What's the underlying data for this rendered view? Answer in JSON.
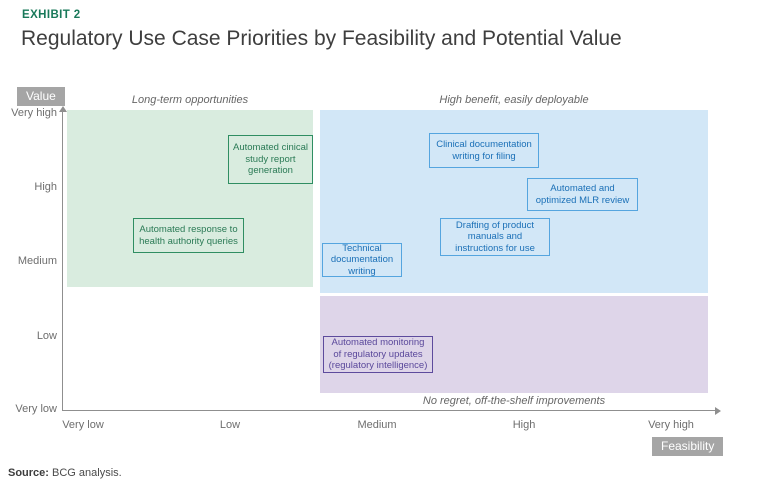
{
  "header": {
    "eyebrow": "EXHIBIT 2",
    "title": "Regulatory Use Case Priorities by Feasibility and Potential Value"
  },
  "axes": {
    "y_label": "Value",
    "x_label": "Feasibility",
    "y_ticks": [
      "Very high",
      "High",
      "Medium",
      "Low",
      "Very low"
    ],
    "x_ticks": [
      "Very low",
      "Low",
      "Medium",
      "High",
      "Very high"
    ]
  },
  "regions": {
    "green": {
      "label": "Long-term opportunities",
      "fill": "#d9ecdf"
    },
    "blue": {
      "label": "High benefit, easily deployable",
      "fill": "#d2e7f7"
    },
    "purple": {
      "label": "No regret, off-the-shelf improvements",
      "fill": "#ded5e9"
    }
  },
  "use_cases": [
    {
      "group": "green",
      "lines": [
        "Automated cinical",
        "study report",
        "generation"
      ]
    },
    {
      "group": "green",
      "lines": [
        "Automated response to",
        "health authority queries"
      ]
    },
    {
      "group": "blue",
      "lines": [
        "Clinical documentation",
        "writing for filing"
      ]
    },
    {
      "group": "blue",
      "lines": [
        "Automated and",
        "optimized MLR review"
      ]
    },
    {
      "group": "blue",
      "lines": [
        "Drafting of product",
        "manuals and",
        "instructions for use"
      ]
    },
    {
      "group": "blue",
      "lines": [
        "Technical",
        "documentation",
        "writing"
      ]
    },
    {
      "group": "purple",
      "lines": [
        "Automated monitoring",
        "of regulatory updates",
        "(regulatory intelligence)"
      ]
    }
  ],
  "source": {
    "prefix": "Source:",
    "text": "BCG analysis."
  },
  "colors": {
    "eyebrow_green": "#19795a",
    "title_gray": "#3e3e3e",
    "axis_gray": "#8f8f8f",
    "badge_gray": "#a5a5a5",
    "green_border": "#2f8e62",
    "green_text": "#2a7a55",
    "blue_border": "#55a5df",
    "blue_text": "#1b70b7",
    "purple_border": "#5d4b9d",
    "purple_text": "#5a489b"
  },
  "chart_data": {
    "type": "scatter",
    "title": "Regulatory Use Case Priorities by Feasibility and Potential Value",
    "xlabel": "Feasibility",
    "ylabel": "Value",
    "x_ticks": [
      "Very low",
      "Low",
      "Medium",
      "High",
      "Very high"
    ],
    "y_ticks": [
      "Very low",
      "Low",
      "Medium",
      "High",
      "Very high"
    ],
    "scale_note": "categorical 1-5, Very low=1 and Very high=5",
    "grid": false,
    "legend": false,
    "regions": [
      {
        "name": "Long-term opportunities",
        "color": "#d9ecdf",
        "x_range": [
          1.0,
          2.6
        ],
        "y_range": [
          3.0,
          5.0
        ]
      },
      {
        "name": "High benefit, easily deployable",
        "color": "#d2e7f7",
        "x_range": [
          2.7,
          5.3
        ],
        "y_range": [
          2.95,
          5.0
        ]
      },
      {
        "name": "No regret, off-the-shelf improvements",
        "color": "#ded5e9",
        "x_range": [
          2.7,
          5.3
        ],
        "y_range": [
          1.1,
          2.9
        ]
      }
    ],
    "points": [
      {
        "label": "Automated cinical study report generation",
        "feasibility": 2.3,
        "value": 4.4,
        "group": "Long-term opportunities"
      },
      {
        "label": "Automated response to health authority queries",
        "feasibility": 1.7,
        "value": 3.4,
        "group": "Long-term opportunities"
      },
      {
        "label": "Clinical documentation writing for filing",
        "feasibility": 3.7,
        "value": 4.5,
        "group": "High benefit, easily deployable"
      },
      {
        "label": "Automated and optimized MLR review",
        "feasibility": 4.4,
        "value": 3.9,
        "group": "High benefit, easily deployable"
      },
      {
        "label": "Drafting of product manuals and instructions for use",
        "feasibility": 3.8,
        "value": 3.3,
        "group": "High benefit, easily deployable"
      },
      {
        "label": "Technical documentation writing",
        "feasibility": 2.9,
        "value": 3.0,
        "group": "High benefit, easily deployable"
      },
      {
        "label": "Automated monitoring of regulatory updates (regulatory intelligence)",
        "feasibility": 3.0,
        "value": 1.7,
        "group": "No regret, off-the-shelf improvements"
      }
    ]
  }
}
